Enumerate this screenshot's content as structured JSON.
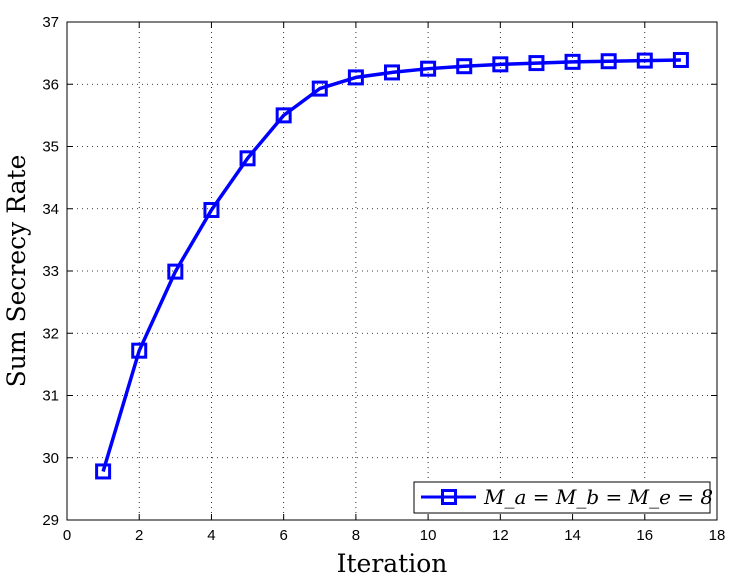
{
  "chart_data": {
    "type": "line",
    "xlabel": "Iteration",
    "ylabel": "Sum Secrecy Rate",
    "xlim": [
      0,
      18
    ],
    "ylim": [
      29,
      37
    ],
    "xticks": [
      0,
      2,
      4,
      6,
      8,
      10,
      12,
      14,
      16,
      18
    ],
    "yticks": [
      29,
      30,
      31,
      32,
      33,
      34,
      35,
      36,
      37
    ],
    "grid": true,
    "legend_position": "bottom-right",
    "series": [
      {
        "name": "M_a = M_b = M_e = 8",
        "color": "#0000ff",
        "marker": "square",
        "x": [
          1,
          2,
          3,
          4,
          5,
          6,
          7,
          8,
          9,
          10,
          11,
          12,
          13,
          14,
          15,
          16,
          17
        ],
        "y": [
          29.78,
          31.72,
          32.99,
          33.98,
          34.81,
          35.5,
          35.93,
          36.11,
          36.19,
          36.25,
          36.29,
          36.32,
          36.34,
          36.36,
          36.37,
          36.38,
          36.39
        ]
      }
    ]
  }
}
